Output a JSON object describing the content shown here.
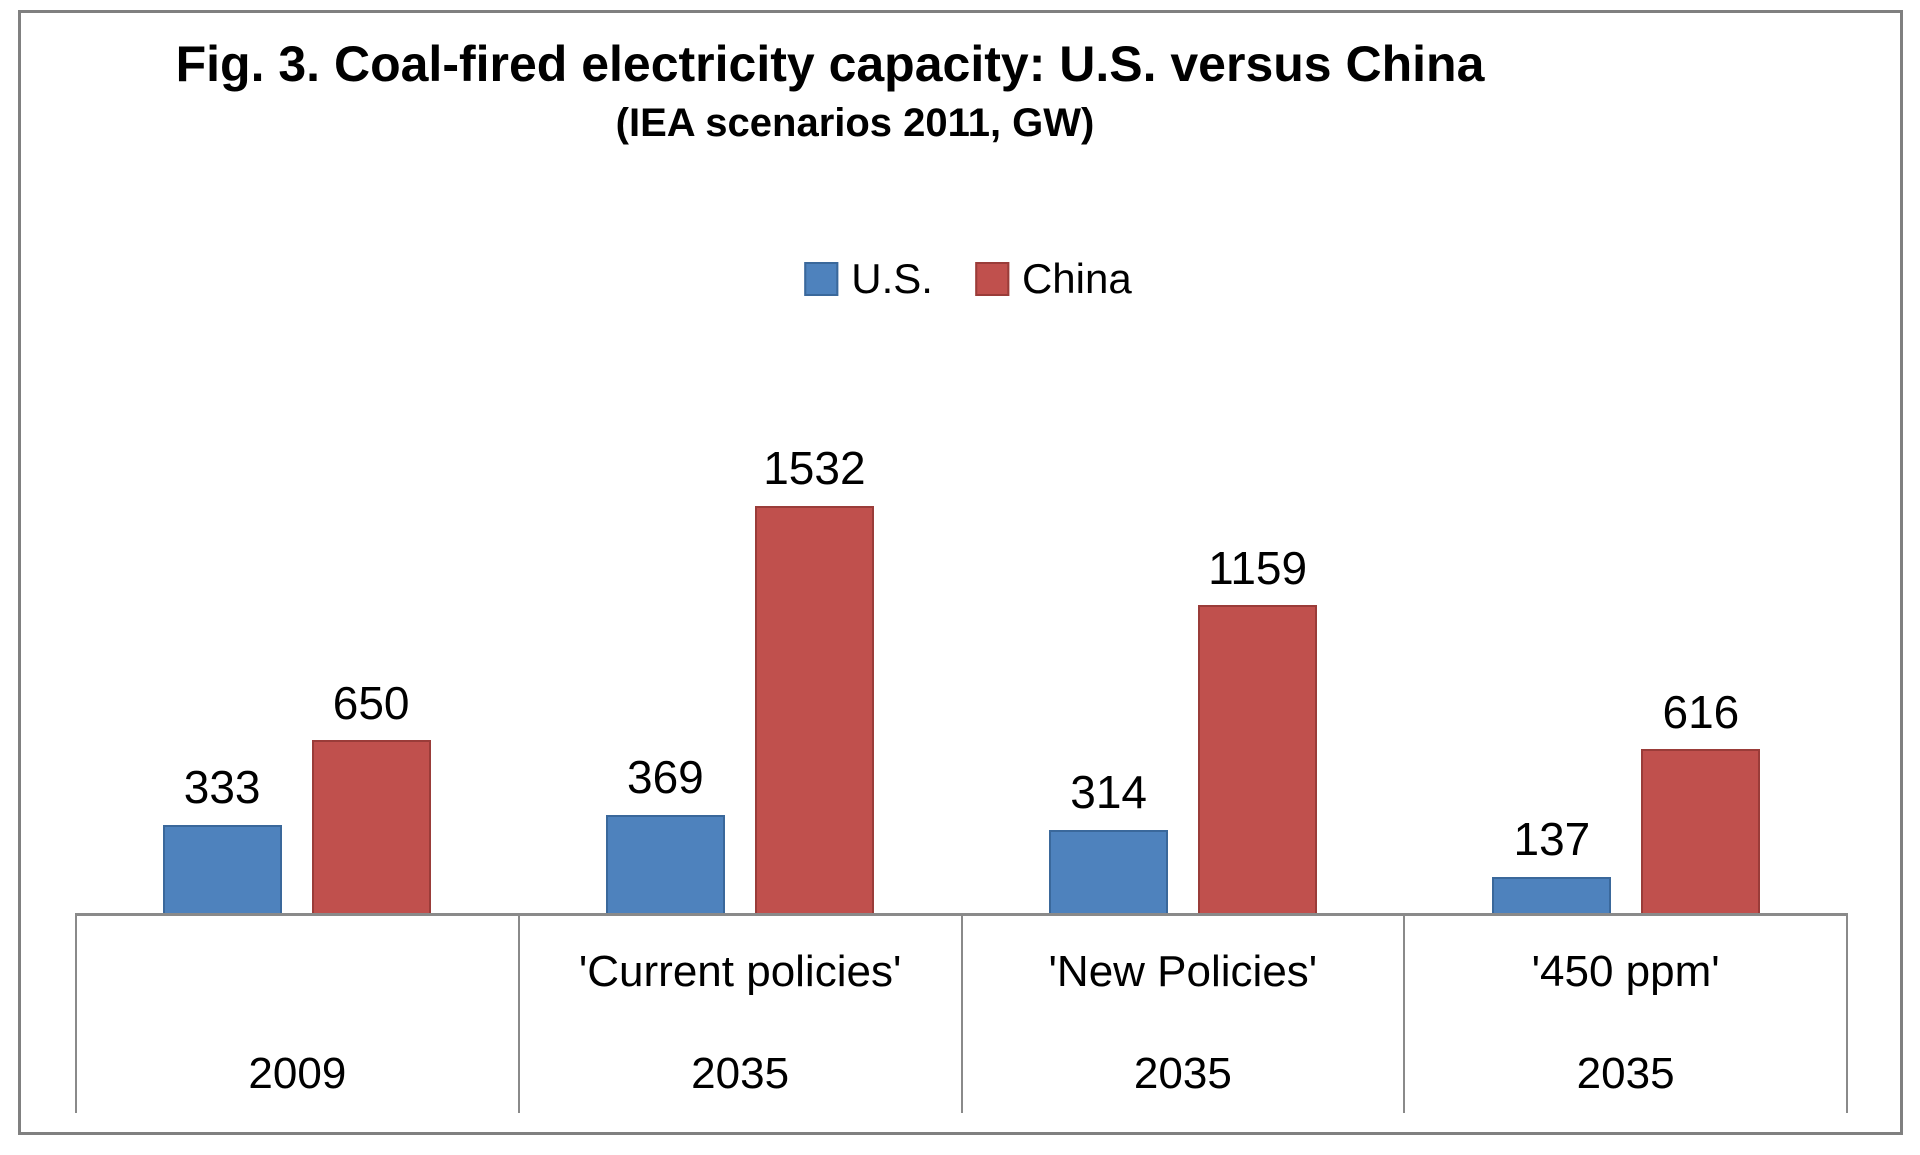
{
  "chart_data": {
    "type": "bar",
    "title": "Fig. 3. Coal-fired electricity capacity: U.S. versus China",
    "subtitle": "(IEA scenarios 2011, GW)",
    "unit": "GW",
    "grid": false,
    "data_labels": true,
    "legend_position": "top-center",
    "ylim": [
      0,
      1650
    ],
    "categories": [
      {
        "scenario": "",
        "year": "2009"
      },
      {
        "scenario": "'Current policies'",
        "year": "2035"
      },
      {
        "scenario": "'New Policies'",
        "year": "2035"
      },
      {
        "scenario": "'450 ppm'",
        "year": "2035"
      }
    ],
    "series": [
      {
        "name": "U.S.",
        "color": "#4E82BD",
        "border_color": "#3A689B",
        "values": [
          333,
          369,
          314,
          137
        ]
      },
      {
        "name": "China",
        "color": "#C0504D",
        "border_color": "#9A3C39",
        "values": [
          650,
          1532,
          1159,
          616
        ]
      }
    ],
    "axis_color": "#8A8A8A",
    "frame_border_color": "#808080"
  }
}
